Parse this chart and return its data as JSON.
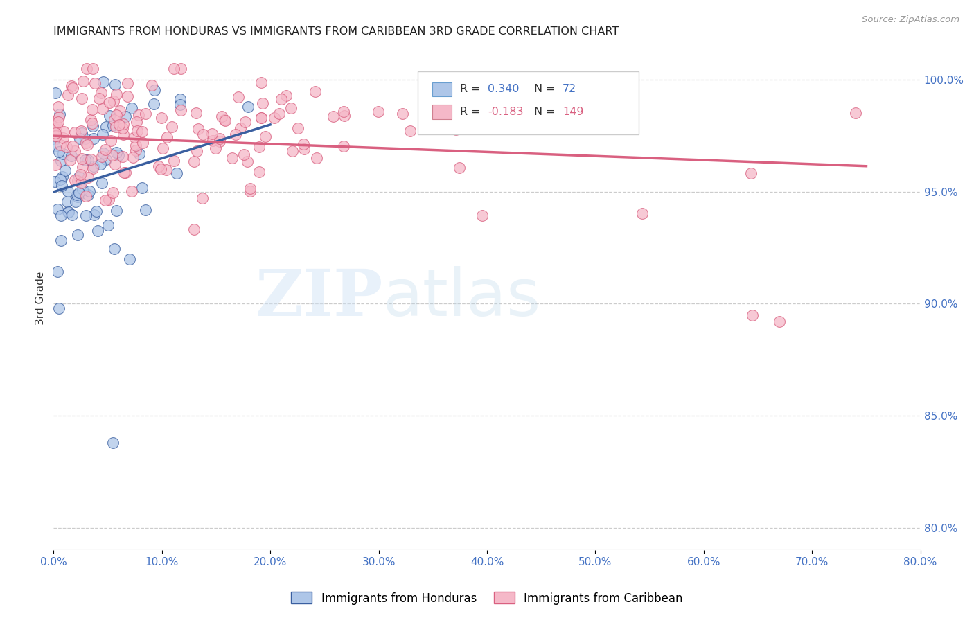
{
  "title": "IMMIGRANTS FROM HONDURAS VS IMMIGRANTS FROM CARIBBEAN 3RD GRADE CORRELATION CHART",
  "source": "Source: ZipAtlas.com",
  "ylabel": "3rd Grade",
  "ylabel_right_ticks": [
    100.0,
    95.0,
    90.0,
    85.0,
    80.0
  ],
  "legend_blue_r": "0.340",
  "legend_blue_n": "72",
  "legend_pink_r": "-0.183",
  "legend_pink_n": "149",
  "legend_blue_label": "Immigrants from Honduras",
  "legend_pink_label": "Immigrants from Caribbean",
  "blue_color": "#aec6e8",
  "pink_color": "#f5b8c8",
  "blue_line_color": "#3a5fa0",
  "pink_line_color": "#d96080",
  "xmin": 0.0,
  "xmax": 80.0,
  "ymin": 79.0,
  "ymax": 101.5,
  "watermark_zip": "ZIP",
  "watermark_atlas": "atlas",
  "background_color": "#ffffff",
  "grid_color": "#cccccc"
}
